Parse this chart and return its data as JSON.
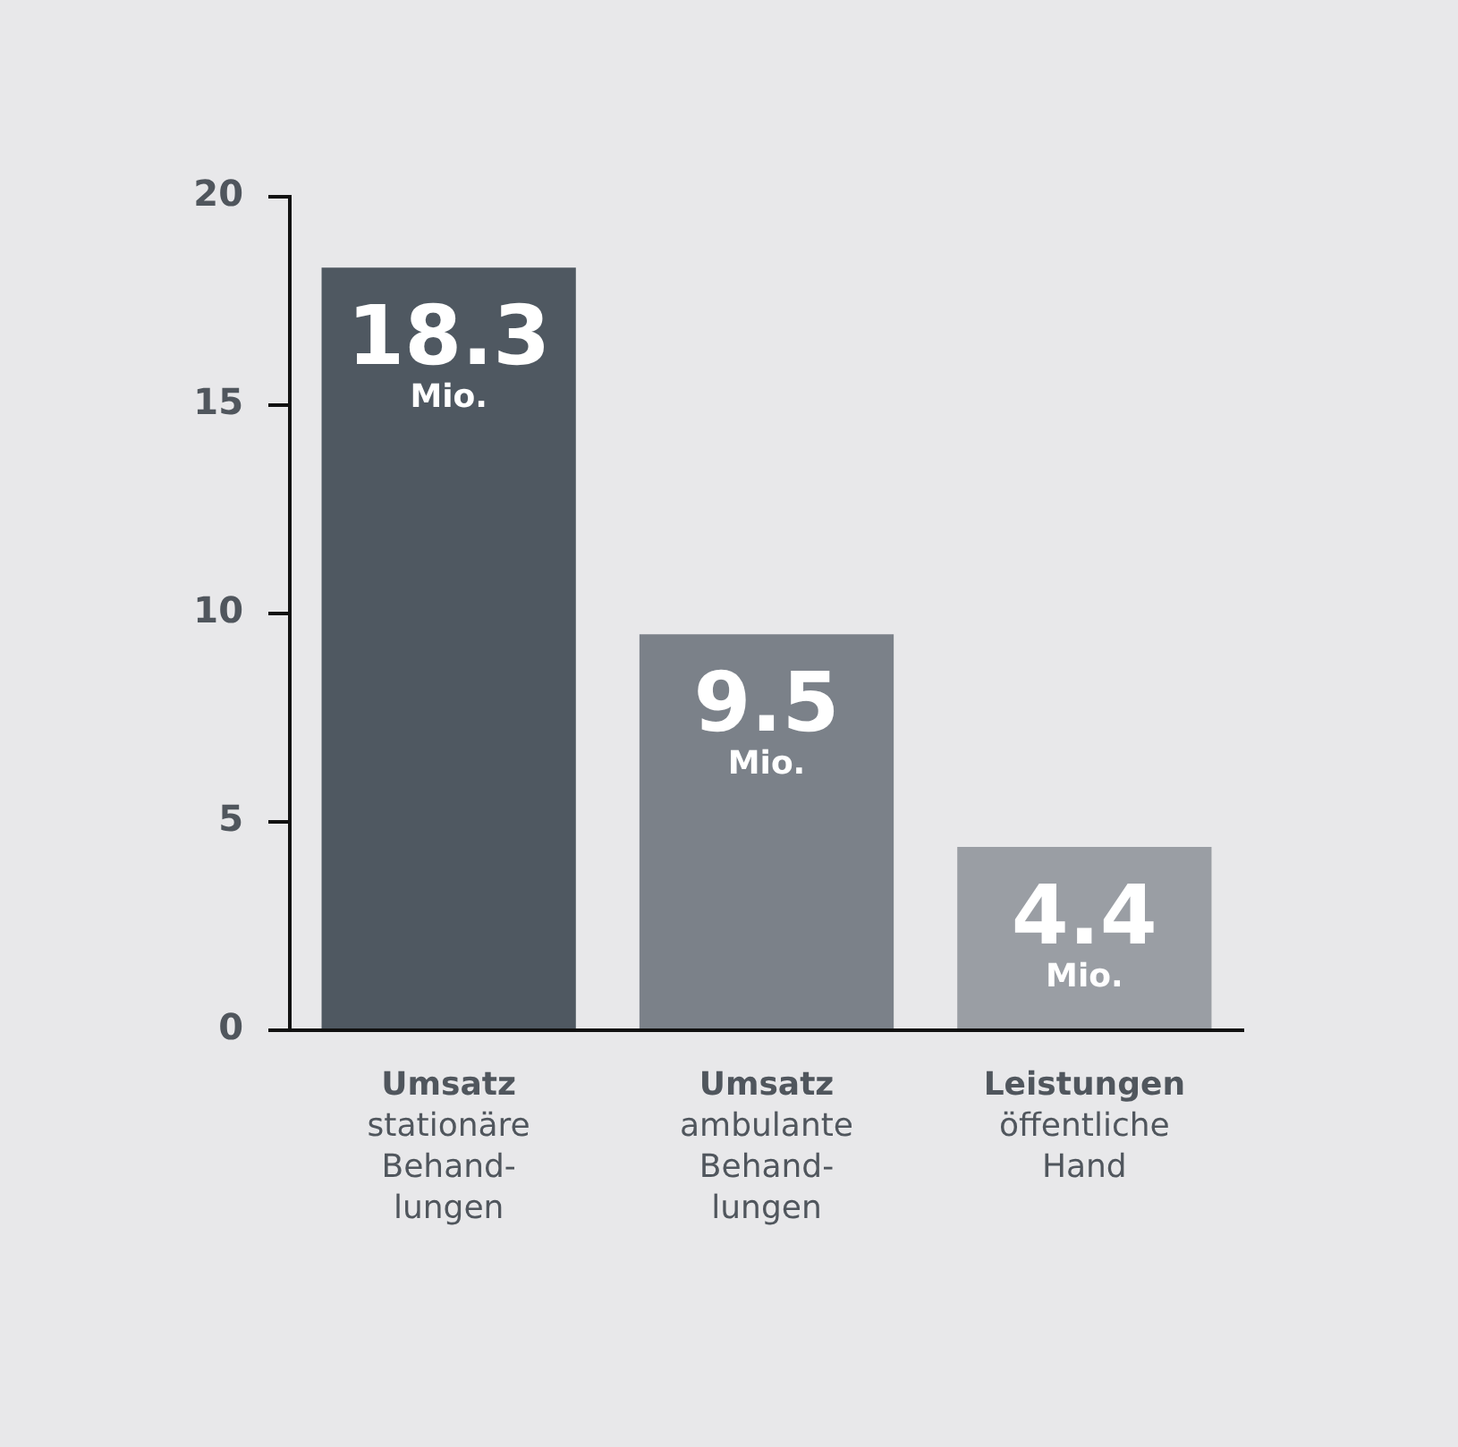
{
  "chart_data": {
    "type": "bar",
    "categories": [
      "Umsatz\nstationäre\nBehand-\nlungen",
      "Umsatz\nambulante\nBehand-\nlungen",
      "Leistungen\nöffentliche\nHand"
    ],
    "values": [
      18.3,
      9.5,
      4.4
    ],
    "colors": [
      "#4f5861",
      "#7b8189",
      "#9a9ea4"
    ],
    "value_labels": [
      "18.3\nMio.",
      "9.5\nMio.",
      "4.4\nMio."
    ],
    "ylim": [
      0,
      20
    ],
    "yticks": [
      0,
      5,
      10,
      15,
      20
    ],
    "grid": false,
    "legend": false
  }
}
